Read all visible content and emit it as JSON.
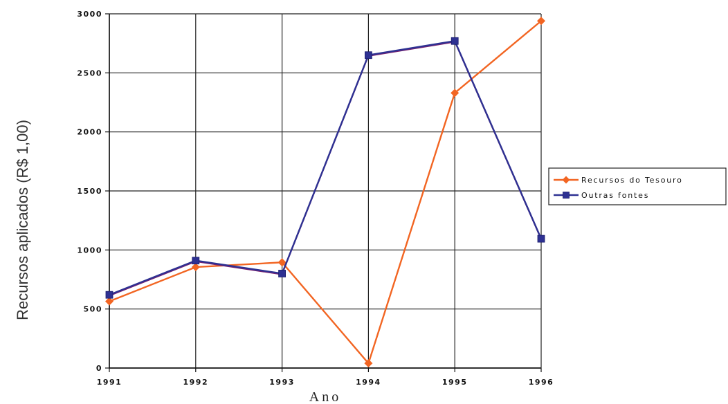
{
  "chart_data": {
    "type": "line",
    "x": [
      "1991",
      "1992",
      "1993",
      "1994",
      "1995",
      "1996"
    ],
    "series": [
      {
        "name": "Recursos do Tesouro",
        "color": "#f26522",
        "marker": "diamond",
        "values": [
          565,
          855,
          895,
          40,
          2330,
          2940
        ]
      },
      {
        "name": "Outras fontes",
        "color": "#2e3192",
        "marker": "square",
        "values": [
          620,
          910,
          800,
          2650,
          2770,
          1095
        ]
      }
    ],
    "y_ticks": [
      "0",
      "500",
      "1000",
      "1500",
      "2000",
      "2500",
      "3000"
    ],
    "xlabel": "Ano",
    "ylabel": "Recursos aplicados (R$ 1,00)",
    "ylim": [
      0,
      3000
    ],
    "grid": true,
    "legend_position": "right"
  }
}
